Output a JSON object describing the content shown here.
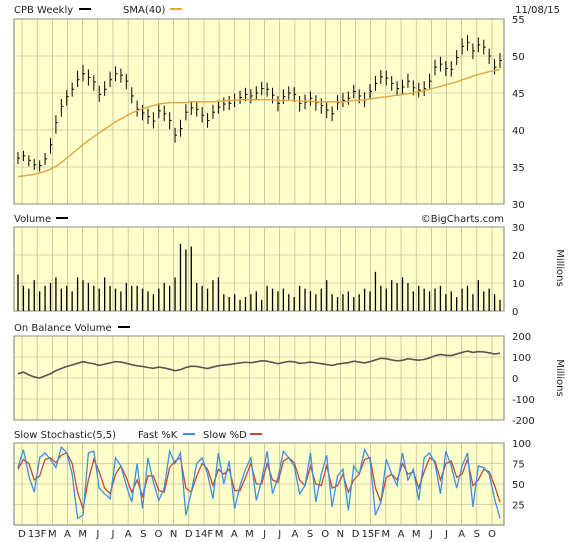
{
  "header": {
    "symbol_label": "CPB Weekly",
    "sma_label": "SMA(40)",
    "date": "11/08/15",
    "price_color": "#000000",
    "sma_color": "#e3a640"
  },
  "watermark": "©BigCharts.com",
  "panels": {
    "price": {
      "ticks": [
        "55",
        "50",
        "45",
        "40",
        "35",
        "30"
      ]
    },
    "volume": {
      "title": "Volume",
      "unit": "Millions",
      "ticks": [
        "30",
        "20",
        "10",
        "0"
      ]
    },
    "obv": {
      "title": "On Balance Volume",
      "unit": "Millions",
      "ticks": [
        "200",
        "100",
        "0",
        "-100",
        "-200"
      ]
    },
    "stoch": {
      "title": "Slow Stochastic(5,5)",
      "fast_label": "Fast %K",
      "slow_label": "Slow %D",
      "fast_color": "#3b8fe8",
      "slow_color": "#c8463b",
      "ticks": [
        "100",
        "75",
        "50",
        "25"
      ]
    }
  },
  "x_axis": {
    "labels": [
      "D",
      "13F",
      "M",
      "A",
      "M",
      "J",
      "J",
      "A",
      "S",
      "O",
      "N",
      "D",
      "14F",
      "M",
      "A",
      "M",
      "J",
      "J",
      "A",
      "S",
      "O",
      "N",
      "D",
      "15F",
      "M",
      "A",
      "M",
      "J",
      "J",
      "A",
      "S",
      "O"
    ]
  },
  "chart_data": [
    {
      "type": "line",
      "title": "CPB Weekly",
      "ylim": [
        30,
        55
      ],
      "series": [
        {
          "name": "CPB Weekly",
          "values": [
            36.2,
            36.5,
            35.9,
            35.3,
            35.2,
            36.1,
            38.0,
            41.0,
            43.2,
            44.5,
            45.5,
            46.8,
            47.6,
            47.1,
            46.5,
            44.8,
            45.5,
            46.8,
            47.6,
            47.4,
            46.6,
            44.6,
            42.8,
            42.3,
            41.8,
            41.2,
            42.6,
            42.2,
            41.3,
            39.3,
            40.2,
            42.4,
            43.0,
            42.8,
            42.0,
            41.3,
            42.4,
            43.1,
            43.5,
            43.6,
            44.0,
            44.4,
            44.8,
            44.6,
            45.0,
            45.6,
            45.5,
            44.7,
            43.6,
            44.5,
            45.0,
            44.8,
            43.6,
            43.8,
            44.3,
            43.7,
            43.3,
            42.7,
            42.2,
            43.7,
            44.0,
            44.3,
            45.2,
            44.6,
            44.1,
            45.2,
            46.3,
            47.2,
            47.0,
            46.3,
            45.6,
            45.8,
            46.6,
            45.7,
            45.4,
            45.6,
            46.6,
            48.5,
            48.9,
            48.3,
            48.2,
            49.8,
            51.3,
            51.8,
            50.7,
            51.5,
            51.2,
            50.0,
            48.5,
            49.4
          ],
          "bar_ranges": [
            [
              35.4,
              37.0
            ],
            [
              35.8,
              37.2
            ],
            [
              35.1,
              36.6
            ],
            [
              34.6,
              36.1
            ],
            [
              34.4,
              35.9
            ],
            [
              35.3,
              36.9
            ],
            [
              36.8,
              38.9
            ],
            [
              39.5,
              42.0
            ],
            [
              41.8,
              44.2
            ],
            [
              43.3,
              45.4
            ],
            [
              44.5,
              46.4
            ],
            [
              45.8,
              48.0
            ],
            [
              46.6,
              48.8
            ],
            [
              46.0,
              48.2
            ],
            [
              45.3,
              47.4
            ],
            [
              43.8,
              46.0
            ],
            [
              44.6,
              46.6
            ],
            [
              45.8,
              47.9
            ],
            [
              46.6,
              48.6
            ],
            [
              46.4,
              48.3
            ],
            [
              45.5,
              47.6
            ],
            [
              43.6,
              45.8
            ],
            [
              41.8,
              44.0
            ],
            [
              41.3,
              43.4
            ],
            [
              40.8,
              42.9
            ],
            [
              40.2,
              42.4
            ],
            [
              41.6,
              43.6
            ],
            [
              41.2,
              43.3
            ],
            [
              40.1,
              42.4
            ],
            [
              38.3,
              40.3
            ],
            [
              39.1,
              41.4
            ],
            [
              41.3,
              43.5
            ],
            [
              42.0,
              43.9
            ],
            [
              41.8,
              43.9
            ],
            [
              41.0,
              43.1
            ],
            [
              40.3,
              42.3
            ],
            [
              41.5,
              43.4
            ],
            [
              42.2,
              44.0
            ],
            [
              42.6,
              44.4
            ],
            [
              42.7,
              44.6
            ],
            [
              43.1,
              44.9
            ],
            [
              43.5,
              45.3
            ],
            [
              43.9,
              45.7
            ],
            [
              43.6,
              45.5
            ],
            [
              44.0,
              45.9
            ],
            [
              44.7,
              46.5
            ],
            [
              44.5,
              46.4
            ],
            [
              43.6,
              45.7
            ],
            [
              42.5,
              44.6
            ],
            [
              43.5,
              45.5
            ],
            [
              44.1,
              45.9
            ],
            [
              43.8,
              45.8
            ],
            [
              42.5,
              44.6
            ],
            [
              42.8,
              44.8
            ],
            [
              43.3,
              45.2
            ],
            [
              42.6,
              44.7
            ],
            [
              42.2,
              44.3
            ],
            [
              41.6,
              43.7
            ],
            [
              41.2,
              43.2
            ],
            [
              42.7,
              44.7
            ],
            [
              43.1,
              45.0
            ],
            [
              43.4,
              45.2
            ],
            [
              44.3,
              46.1
            ],
            [
              43.6,
              45.5
            ],
            [
              43.1,
              45.1
            ],
            [
              44.2,
              46.2
            ],
            [
              45.3,
              47.3
            ],
            [
              46.2,
              48.1
            ],
            [
              46.0,
              48.0
            ],
            [
              45.3,
              47.3
            ],
            [
              44.6,
              46.6
            ],
            [
              44.9,
              46.8
            ],
            [
              45.7,
              47.6
            ],
            [
              44.7,
              46.7
            ],
            [
              44.4,
              46.4
            ],
            [
              44.6,
              46.6
            ],
            [
              45.6,
              47.6
            ],
            [
              47.4,
              49.5
            ],
            [
              47.9,
              49.9
            ],
            [
              47.3,
              49.3
            ],
            [
              47.2,
              49.3
            ],
            [
              48.8,
              50.8
            ],
            [
              50.2,
              52.4
            ],
            [
              50.7,
              52.8
            ],
            [
              49.6,
              51.7
            ],
            [
              50.5,
              52.5
            ],
            [
              50.2,
              52.2
            ],
            [
              48.9,
              51.0
            ],
            [
              47.5,
              49.6
            ],
            [
              48.4,
              50.4
            ]
          ]
        },
        {
          "name": "SMA(40)",
          "values": [
            33.7,
            33.8,
            33.9,
            34.0,
            34.2,
            34.4,
            34.7,
            35.1,
            35.6,
            36.2,
            36.8,
            37.4,
            38.0,
            38.6,
            39.1,
            39.6,
            40.1,
            40.6,
            41.1,
            41.5,
            41.9,
            42.3,
            42.6,
            42.9,
            43.1,
            43.3,
            43.5,
            43.6,
            43.7,
            43.7,
            43.7,
            43.7,
            43.8,
            43.8,
            43.8,
            43.8,
            43.8,
            43.9,
            43.9,
            44.0,
            44.0,
            44.1,
            44.1,
            44.1,
            44.1,
            44.1,
            44.1,
            44.1,
            44.0,
            44.0,
            44.0,
            44.0,
            43.9,
            43.9,
            43.9,
            43.8,
            43.8,
            43.8,
            43.8,
            43.8,
            43.8,
            43.9,
            44.0,
            44.0,
            44.1,
            44.2,
            44.3,
            44.4,
            44.5,
            44.6,
            44.7,
            44.8,
            44.9,
            45.0,
            45.2,
            45.3,
            45.5,
            45.7,
            45.9,
            46.1,
            46.3,
            46.5,
            46.8,
            47.0,
            47.3,
            47.5,
            47.7,
            47.9,
            48.0,
            48.2
          ]
        }
      ]
    },
    {
      "type": "bar",
      "title": "Volume",
      "ylabel": "Millions",
      "ylim": [
        0,
        30
      ],
      "series": [
        {
          "name": "Volume",
          "values": [
            13,
            9,
            8,
            11,
            7,
            9,
            10,
            12,
            8,
            9,
            7,
            12,
            11,
            10,
            9,
            8,
            12,
            9,
            8,
            7,
            10,
            9,
            9,
            8,
            7,
            6,
            8,
            10,
            9,
            12,
            24,
            22,
            23,
            10,
            9,
            8,
            11,
            12,
            6,
            5,
            6,
            4,
            5,
            6,
            7,
            4,
            9,
            8,
            7,
            8,
            6,
            5,
            9,
            8,
            7,
            6,
            8,
            11,
            6,
            5,
            6,
            7,
            5,
            6,
            8,
            7,
            14,
            9,
            8,
            11,
            10,
            12,
            10,
            7,
            9,
            8,
            7,
            8,
            9,
            6,
            7,
            5,
            8,
            9,
            6,
            11,
            7,
            8,
            6,
            4
          ]
        }
      ]
    },
    {
      "type": "line",
      "title": "On Balance Volume",
      "ylabel": "Millions",
      "ylim": [
        -200,
        200
      ],
      "series": [
        {
          "name": "On Balance Volume",
          "values": [
            20,
            28,
            15,
            5,
            0,
            10,
            20,
            35,
            45,
            55,
            62,
            70,
            78,
            72,
            68,
            60,
            66,
            72,
            78,
            76,
            70,
            63,
            58,
            55,
            50,
            46,
            52,
            48,
            42,
            35,
            40,
            50,
            56,
            55,
            50,
            45,
            52,
            58,
            62,
            64,
            68,
            72,
            75,
            73,
            77,
            82,
            80,
            74,
            68,
            74,
            79,
            77,
            70,
            72,
            76,
            72,
            68,
            64,
            60,
            66,
            70,
            73,
            80,
            76,
            72,
            78,
            86,
            94,
            92,
            86,
            82,
            84,
            92,
            88,
            85,
            88,
            96,
            106,
            112,
            108,
            107,
            114,
            122,
            128,
            122,
            126,
            124,
            120,
            114,
            118
          ]
        }
      ]
    },
    {
      "type": "line",
      "title": "Slow Stochastic(5,5)",
      "ylim": [
        0,
        100
      ],
      "series": [
        {
          "name": "Fast %K",
          "values": [
            70,
            92,
            60,
            40,
            82,
            88,
            80,
            70,
            95,
            88,
            62,
            8,
            12,
            88,
            90,
            45,
            38,
            32,
            82,
            72,
            48,
            28,
            75,
            20,
            82,
            52,
            30,
            45,
            90,
            75,
            88,
            12,
            40,
            75,
            82,
            62,
            32,
            88,
            50,
            78,
            20,
            48,
            68,
            82,
            30,
            55,
            90,
            38,
            58,
            90,
            82,
            72,
            38,
            48,
            88,
            28,
            62,
            85,
            22,
            60,
            68,
            18,
            72,
            62,
            92,
            80,
            12,
            28,
            80,
            62,
            48,
            88,
            55,
            68,
            30,
            82,
            88,
            75,
            38,
            90,
            72,
            45,
            72,
            88,
            22,
            72,
            70,
            62,
            32,
            8
          ]
        },
        {
          "name": "Slow %D",
          "values": [
            68,
            80,
            75,
            55,
            60,
            80,
            82,
            76,
            85,
            88,
            75,
            40,
            20,
            55,
            80,
            65,
            45,
            38,
            62,
            72,
            58,
            40,
            55,
            35,
            60,
            60,
            42,
            40,
            70,
            78,
            82,
            45,
            40,
            60,
            75,
            68,
            48,
            68,
            62,
            68,
            42,
            42,
            58,
            75,
            50,
            50,
            75,
            55,
            52,
            78,
            82,
            76,
            55,
            48,
            72,
            50,
            48,
            72,
            45,
            48,
            62,
            40,
            55,
            62,
            80,
            82,
            45,
            28,
            58,
            62,
            55,
            75,
            62,
            65,
            45,
            65,
            82,
            78,
            55,
            75,
            78,
            58,
            62,
            80,
            48,
            55,
            68,
            65,
            48,
            28
          ]
        }
      ]
    }
  ]
}
